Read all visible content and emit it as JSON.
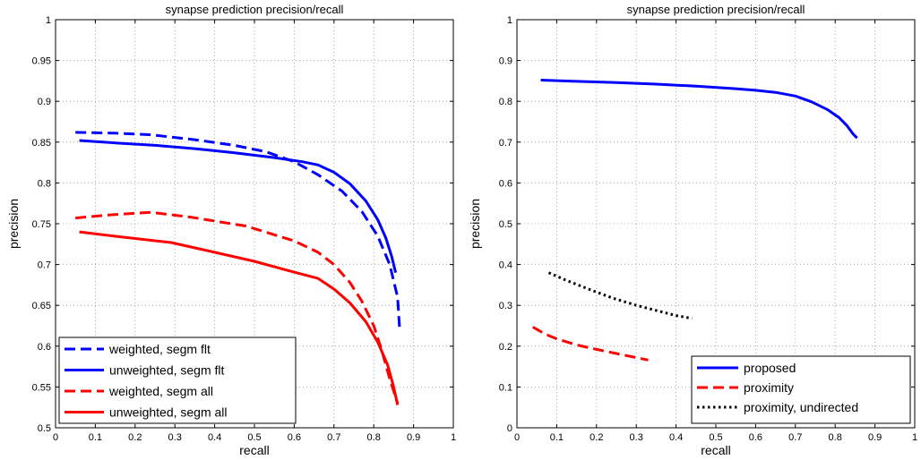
{
  "chart_data": [
    {
      "type": "line",
      "title": "synapse prediction precision/recall",
      "xlabel": "recall",
      "ylabel": "precision",
      "xlim": [
        0,
        1
      ],
      "ylim": [
        0.5,
        1
      ],
      "xticks": [
        "0",
        "0.1",
        "0.2",
        "0.3",
        "0.4",
        "0.5",
        "0.6",
        "0.7",
        "0.8",
        "0.9",
        "1"
      ],
      "yticks": [
        "0.5",
        "0.55",
        "0.6",
        "0.65",
        "0.7",
        "0.75",
        "0.8",
        "0.85",
        "0.9",
        "0.95",
        "1"
      ],
      "grid": true,
      "legend_position": "bottom-left",
      "series": [
        {
          "name": "weighted, segm flt",
          "color": "#0000ff",
          "style": "dashed",
          "x": [
            0.05,
            0.15,
            0.24,
            0.35,
            0.45,
            0.53,
            0.6,
            0.66,
            0.72,
            0.77,
            0.81,
            0.84,
            0.86,
            0.865
          ],
          "y": [
            0.862,
            0.861,
            0.859,
            0.853,
            0.846,
            0.838,
            0.826,
            0.81,
            0.79,
            0.765,
            0.735,
            0.7,
            0.66,
            0.62
          ]
        },
        {
          "name": "unweighted, segm flt",
          "color": "#0000ff",
          "style": "solid",
          "x": [
            0.06,
            0.15,
            0.25,
            0.35,
            0.45,
            0.55,
            0.62,
            0.66,
            0.7,
            0.74,
            0.78,
            0.81,
            0.83,
            0.845,
            0.855
          ],
          "y": [
            0.852,
            0.849,
            0.846,
            0.842,
            0.837,
            0.831,
            0.826,
            0.822,
            0.813,
            0.799,
            0.778,
            0.755,
            0.733,
            0.71,
            0.69
          ]
        },
        {
          "name": "weighted, segm all",
          "color": "#ff0000",
          "style": "dashed",
          "x": [
            0.05,
            0.14,
            0.24,
            0.34,
            0.48,
            0.6,
            0.66,
            0.7,
            0.74,
            0.77,
            0.8,
            0.82,
            0.84,
            0.86
          ],
          "y": [
            0.757,
            0.761,
            0.764,
            0.758,
            0.747,
            0.729,
            0.715,
            0.7,
            0.678,
            0.655,
            0.625,
            0.595,
            0.56,
            0.53
          ]
        },
        {
          "name": "unweighted, segm all",
          "color": "#ff0000",
          "style": "solid",
          "x": [
            0.06,
            0.18,
            0.29,
            0.4,
            0.5,
            0.59,
            0.66,
            0.7,
            0.74,
            0.78,
            0.81,
            0.835,
            0.85,
            0.86
          ],
          "y": [
            0.74,
            0.733,
            0.727,
            0.715,
            0.704,
            0.692,
            0.683,
            0.67,
            0.653,
            0.63,
            0.605,
            0.577,
            0.55,
            0.528
          ]
        }
      ]
    },
    {
      "type": "line",
      "title": "synapse prediction precision/recall",
      "xlabel": "recall",
      "ylabel": "precision",
      "xlim": [
        0,
        1
      ],
      "ylim": [
        0,
        1
      ],
      "xticks": [
        "0",
        "0.1",
        "0.2",
        "0.3",
        "0.4",
        "0.5",
        "0.6",
        "0.7",
        "0.8",
        "0.9",
        "1"
      ],
      "yticks": [
        "0",
        "0.1",
        "0.2",
        "0.3",
        "0.4",
        "0.5",
        "0.6",
        "0.7",
        "0.8",
        "0.9",
        "1"
      ],
      "grid": true,
      "legend_position": "bottom-right",
      "series": [
        {
          "name": "proposed",
          "color": "#0000ff",
          "style": "solid",
          "x": [
            0.06,
            0.15,
            0.25,
            0.35,
            0.45,
            0.55,
            0.6,
            0.65,
            0.7,
            0.74,
            0.78,
            0.81,
            0.83,
            0.845,
            0.855
          ],
          "y": [
            0.852,
            0.849,
            0.846,
            0.842,
            0.837,
            0.831,
            0.827,
            0.822,
            0.813,
            0.799,
            0.78,
            0.76,
            0.74,
            0.72,
            0.71
          ]
        },
        {
          "name": "proximity",
          "color": "#ff0000",
          "style": "dashed",
          "x": [
            0.04,
            0.07,
            0.1,
            0.15,
            0.2,
            0.25,
            0.3,
            0.33
          ],
          "y": [
            0.247,
            0.23,
            0.218,
            0.203,
            0.192,
            0.182,
            0.172,
            0.166
          ]
        },
        {
          "name": "proximity, undirected",
          "color": "#000000",
          "style": "dotted",
          "x": [
            0.08,
            0.12,
            0.18,
            0.24,
            0.3,
            0.36,
            0.4,
            0.44
          ],
          "y": [
            0.38,
            0.363,
            0.34,
            0.318,
            0.3,
            0.285,
            0.275,
            0.268
          ]
        }
      ]
    }
  ]
}
